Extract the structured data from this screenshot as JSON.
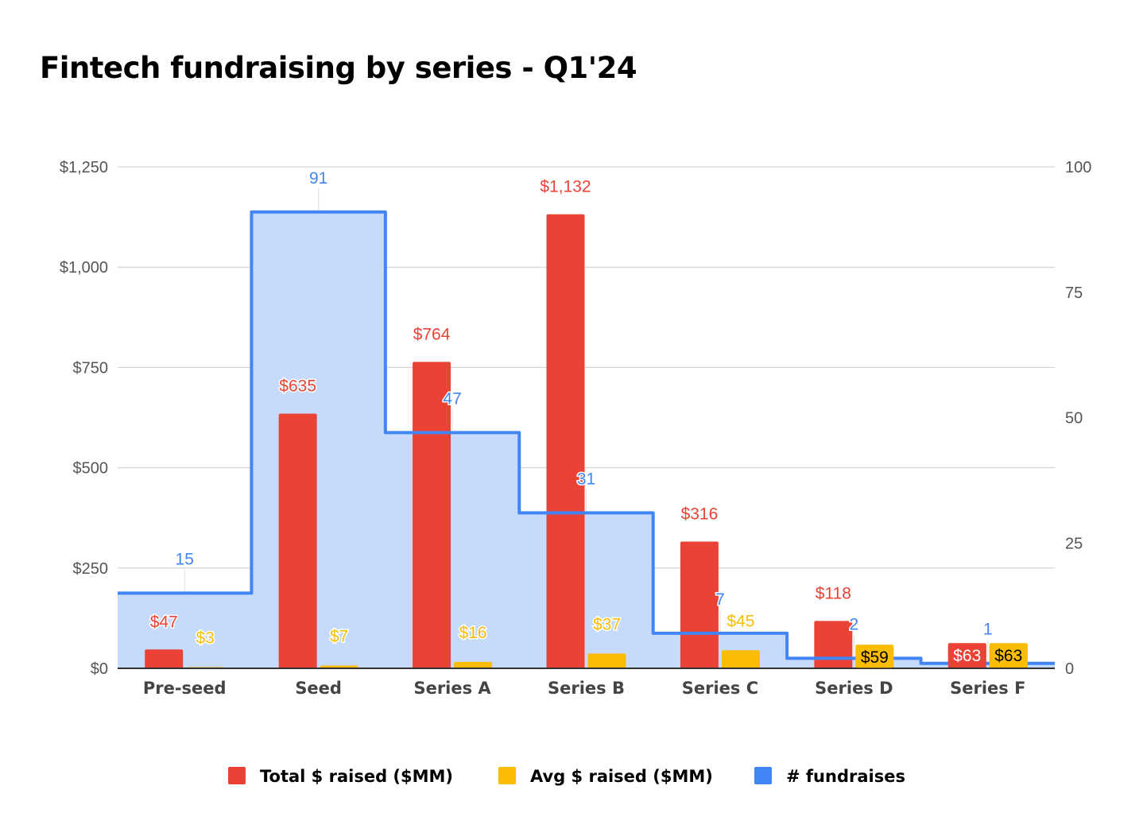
{
  "chart_data": {
    "type": "bar",
    "title": "Fintech fundraising by series - Q1'24",
    "categories": [
      "Pre-seed",
      "Seed",
      "Series A",
      "Series B",
      "Series C",
      "Series D",
      "Series F"
    ],
    "series": [
      {
        "name": "Total $ raised ($MM)",
        "kind": "bar",
        "axis": "left",
        "color": "#ea4335",
        "values": [
          47,
          635,
          764,
          1132,
          316,
          118,
          63
        ],
        "labels": [
          "$47",
          "$635",
          "$764",
          "$1,132",
          "$316",
          "$118",
          "$63"
        ]
      },
      {
        "name": "Avg $ raised ($MM)",
        "kind": "bar",
        "axis": "left",
        "color": "#fbbc04",
        "values": [
          3,
          7,
          16,
          37,
          45,
          59,
          63
        ],
        "labels": [
          "$3",
          "$7",
          "$16",
          "$37",
          "$45",
          "$59",
          "$63"
        ]
      },
      {
        "name": "# fundraises",
        "kind": "stepped-area",
        "axis": "right",
        "color": "#4285f4",
        "fill": "#c6dafc",
        "values": [
          15,
          91,
          47,
          31,
          7,
          2,
          1
        ],
        "labels": [
          "15",
          "91",
          "47",
          "31",
          "7",
          "2",
          "1"
        ]
      }
    ],
    "left_axis": {
      "ylim": [
        0,
        1250
      ],
      "ticks": [
        0,
        250,
        500,
        750,
        1000,
        1250
      ],
      "tick_labels": [
        "$0",
        "$250",
        "$500",
        "$750",
        "$1,000",
        "$1,250"
      ]
    },
    "right_axis": {
      "ylim": [
        0,
        100
      ],
      "ticks": [
        0,
        25,
        50,
        75,
        100
      ],
      "tick_labels": [
        "0",
        "25",
        "50",
        "75",
        "100"
      ]
    },
    "grid": true,
    "legend_position": "bottom"
  }
}
